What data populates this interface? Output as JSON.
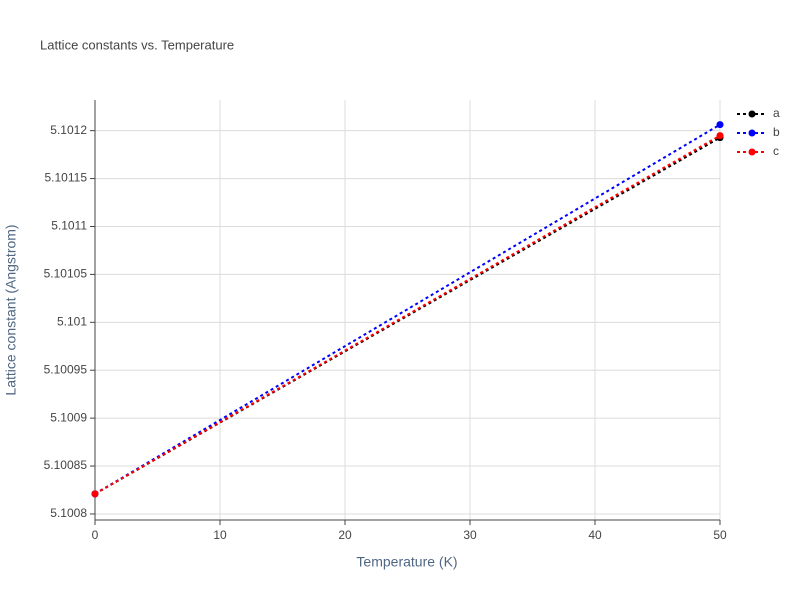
{
  "chart_data": {
    "type": "line",
    "title": "Lattice constants vs. Temperature",
    "x_label": "Temperature (K)",
    "y_label": "Lattice constant (Angstrom)",
    "x": [
      0,
      50
    ],
    "series": [
      {
        "name": "a",
        "color": "#000000",
        "values": [
          5.100821,
          5.1011927
        ]
      },
      {
        "name": "b",
        "color": "#0000ff",
        "values": [
          5.100821,
          5.1012063
        ]
      },
      {
        "name": "c",
        "color": "#ff0000",
        "values": [
          5.100821,
          5.1011948
        ]
      }
    ],
    "xlim": [
      0,
      50
    ],
    "xticks": [
      0,
      10,
      20,
      30,
      40,
      50
    ],
    "ylim": [
      5.1007937,
      5.101232
    ],
    "yticks": [
      5.1008,
      5.10085,
      5.1009,
      5.10095,
      5.101,
      5.10105,
      5.1011,
      5.10115,
      5.1012
    ],
    "grid": true,
    "legend": "top-right"
  }
}
